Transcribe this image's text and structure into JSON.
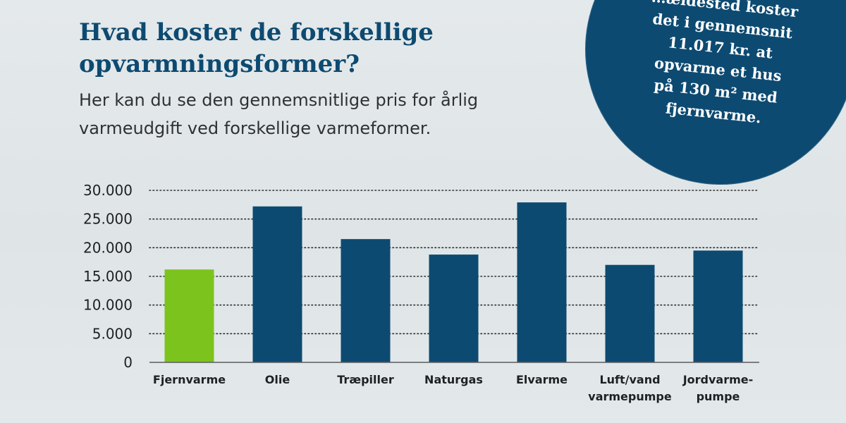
{
  "heading": {
    "title": "Hvad koster de forskellige opvarmningsformer?",
    "subtitle": "Her kan du se den gennemsnitlige pris for årlig varmeudgift ved forskellige varmeformer."
  },
  "badge": {
    "text": "…ældested koster\ndet i gennemsnit\n11.017 kr. at\nopvarme et hus\npå 130 m² med\nfjernvarme."
  },
  "colors": {
    "highlight": "#7dc31e",
    "bar": "#0d4a71",
    "axis_text": "#1e2022",
    "grid": "#2a2d30"
  },
  "chart_data": {
    "type": "bar",
    "title": "",
    "xlabel": "",
    "ylabel": "",
    "ylim": [
      0,
      30000
    ],
    "y_ticks": [
      {
        "value": 0,
        "label": "0"
      },
      {
        "value": 5000,
        "label": "5.000"
      },
      {
        "value": 10000,
        "label": "10.000"
      },
      {
        "value": 15000,
        "label": "15.000"
      },
      {
        "value": 20000,
        "label": "20.000"
      },
      {
        "value": 25000,
        "label": "25.000"
      },
      {
        "value": 30000,
        "label": "30.000"
      }
    ],
    "grid": "horizontal dotted",
    "categories": [
      [
        "Fjernvarme"
      ],
      [
        "Olie"
      ],
      [
        "Træpiller"
      ],
      [
        "Naturgas"
      ],
      [
        "Elvarme"
      ],
      [
        "Luft/vand",
        "varmepumpe"
      ],
      [
        "Jordvarme-",
        "pumpe"
      ]
    ],
    "values": [
      16200,
      27200,
      21500,
      18800,
      27900,
      17000,
      19500
    ],
    "highlight_index": 0
  }
}
